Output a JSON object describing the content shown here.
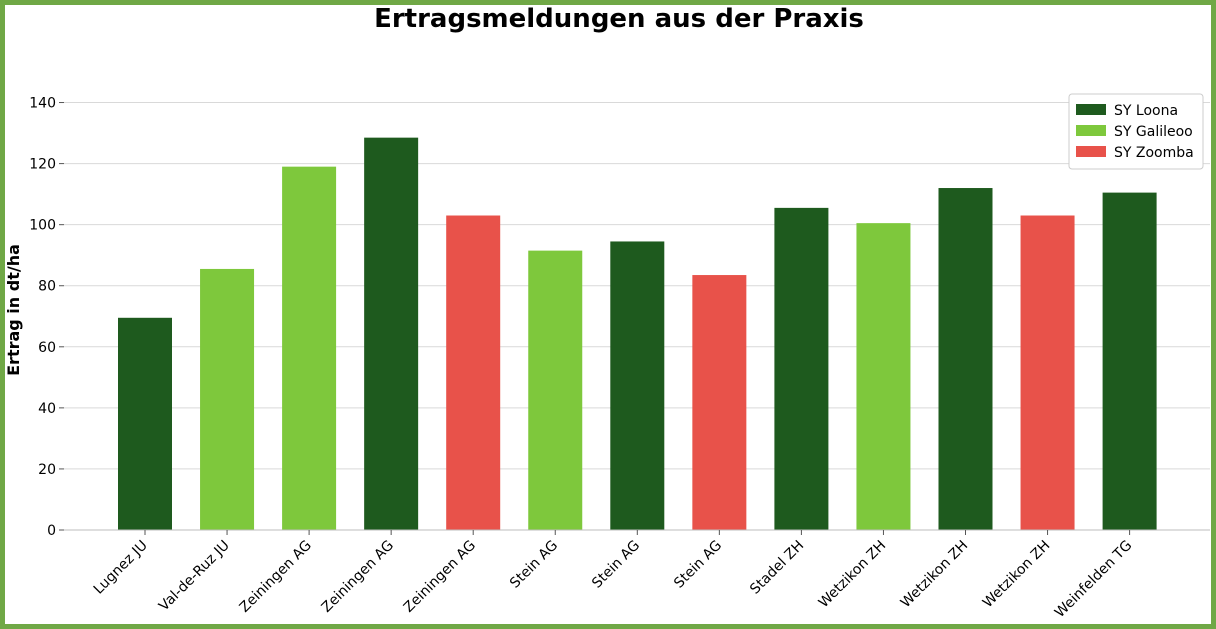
{
  "chart_data": {
    "type": "bar",
    "title": "Ertragsmeldungen aus der Praxis",
    "xlabel": "",
    "ylabel": "Ertrag in dt/ha",
    "ylim": [
      0,
      150
    ],
    "yticks": [
      0,
      20,
      40,
      60,
      80,
      100,
      120,
      140
    ],
    "grid": true,
    "legend_position": "top-right",
    "categories": [
      "Lugnez JU",
      "Val-de-Ruz JU",
      "Zeiningen AG",
      "Zeiningen AG",
      "Zeiningen AG",
      "Stein AG",
      "Stein AG",
      "Stein AG",
      "Stadel ZH",
      "Wetzikon ZH",
      "Wetzikon ZH",
      "Wetzikon ZH",
      "Weinfelden TG"
    ],
    "values": [
      69.5,
      85.5,
      119,
      128.5,
      103,
      91.5,
      94.5,
      83.5,
      105.5,
      100.5,
      112,
      103,
      110.5
    ],
    "bar_series": [
      "SY Loona",
      "SY Galileoo",
      "SY Galileoo",
      "SY Loona",
      "SY Zoomba",
      "SY Galileoo",
      "SY Loona",
      "SY Zoomba",
      "SY Loona",
      "SY Galileoo",
      "SY Loona",
      "SY Zoomba",
      "SY Loona"
    ],
    "series": [
      {
        "name": "SY Loona",
        "color": "#1e5a1e"
      },
      {
        "name": "SY Galileoo",
        "color": "#7ec83c"
      },
      {
        "name": "SY Zoomba",
        "color": "#e8524a"
      }
    ]
  }
}
